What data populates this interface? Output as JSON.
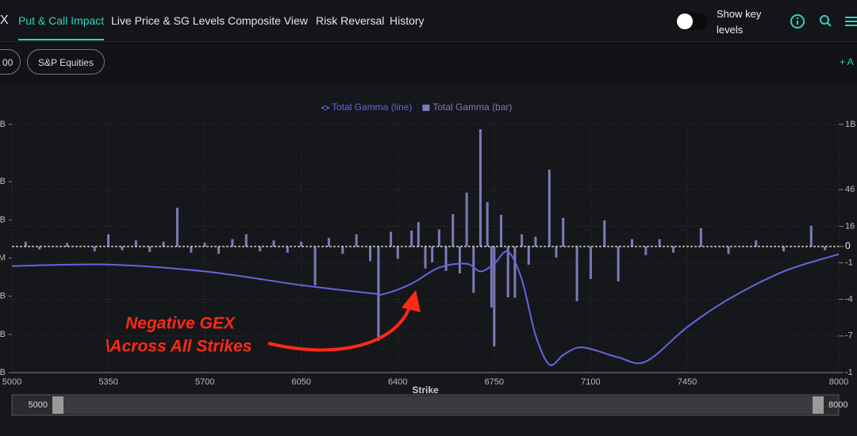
{
  "nav": {
    "brand": "X",
    "tabs": [
      "Put & Call Impact",
      "Live Price & SG Levels",
      "Composite View",
      "Risk Reversal",
      "History"
    ],
    "active_tab": 0,
    "toggle_label": "Show key levels"
  },
  "filters": [
    "00",
    "S&P Equities"
  ],
  "add_button": "+ A",
  "chart_data": {
    "type": "bar",
    "xlabel": "Strike",
    "xlim": [
      5000,
      8000
    ],
    "xticks": [
      5000,
      5350,
      5700,
      6050,
      6400,
      6750,
      7100,
      7450,
      8000
    ],
    "ylim": [
      -1033,
      1000
    ],
    "yticks": [
      {
        "value": 1000,
        "label": "1B"
      },
      {
        "value": 466,
        "label": "46"
      },
      {
        "value": 166,
        "label": "16"
      },
      0,
      {
        "value": -133,
        "label": "-1"
      },
      {
        "value": -433,
        "label": "-4"
      },
      {
        "value": -733,
        "label": "-7"
      },
      {
        "value": -1033,
        "label": "-1"
      }
    ],
    "y2lim": [
      -3,
      3.5
    ],
    "y2ticks": [
      {
        "value": 3.5,
        "label": "B"
      },
      {
        "value": 2,
        "label": "B"
      },
      {
        "value": 1,
        "label": "B"
      },
      {
        "value": 0,
        "label": "M"
      },
      {
        "value": -1,
        "label": "B"
      },
      {
        "value": -2,
        "label": "B"
      },
      {
        "value": -3,
        "label": "B"
      }
    ],
    "grid": true,
    "legend": "top",
    "series": [
      {
        "name": "Total Gamma (line)",
        "type": "line",
        "axis": "y2",
        "color": "#6a62e0",
        "x": [
          5000,
          5350,
          5700,
          6050,
          6300,
          6350,
          6450,
          6550,
          6650,
          6700,
          6750,
          6800,
          6850,
          6900,
          6950,
          7000,
          7050,
          7100,
          7200,
          7300,
          7450,
          7600,
          7800,
          8000
        ],
        "values": [
          -0.21,
          -0.17,
          -0.35,
          -0.71,
          -0.92,
          -0.94,
          -0.67,
          -0.25,
          -0.15,
          -0.35,
          -0.15,
          0.17,
          -0.56,
          -2.02,
          -2.79,
          -2.54,
          -2.35,
          -2.38,
          -2.6,
          -2.71,
          -1.81,
          -1.08,
          -0.35,
          0.1
        ]
      },
      {
        "name": "Total Gamma (bar)",
        "type": "bar",
        "color": "#7d7ab8",
        "x": [
          5050,
          5100,
          5200,
          5300,
          5350,
          5400,
          5450,
          5500,
          5550,
          5600,
          5650,
          5700,
          5750,
          5800,
          5850,
          5900,
          5950,
          6000,
          6050,
          6100,
          6150,
          6200,
          6250,
          6300,
          6330,
          6375,
          6400,
          6450,
          6475,
          6500,
          6525,
          6550,
          6575,
          6600,
          6625,
          6650,
          6675,
          6700,
          6725,
          6740,
          6750,
          6775,
          6800,
          6825,
          6850,
          6875,
          6900,
          6950,
          6975,
          7000,
          7050,
          7100,
          7150,
          7200,
          7250,
          7300,
          7350,
          7400,
          7500,
          7600,
          7700,
          7800,
          7900,
          7950
        ],
        "values": [
          40,
          -25,
          30,
          -40,
          100,
          -30,
          50,
          -45,
          40,
          318,
          -50,
          30,
          -60,
          60,
          100,
          -40,
          50,
          -50,
          40,
          -318,
          70,
          -60,
          100,
          -120,
          -773,
          120,
          -100,
          130,
          200,
          -180,
          -130,
          140,
          -200,
          266,
          -220,
          442,
          -380,
          961,
          364,
          -500,
          -818,
          260,
          -416,
          -420,
          100,
          -150,
          80,
          630,
          -90,
          234,
          -448,
          -266,
          214,
          -286,
          60,
          -70,
          60,
          -50,
          150,
          -60,
          50,
          -40,
          169,
          -30
        ]
      }
    ],
    "annotation": [
      "Negative GEX",
      "\\Across All Strikes"
    ]
  },
  "slider": {
    "min_label": 5000,
    "max_label": 8000
  }
}
